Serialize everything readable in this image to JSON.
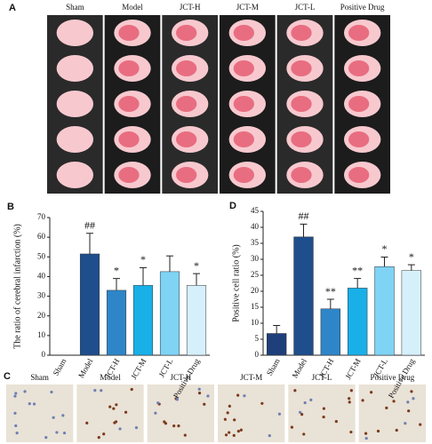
{
  "panel_a": {
    "label": "A",
    "groups": [
      "Sham",
      "Model",
      "JCT-H",
      "JCT-M",
      "JCT-L",
      "Positive Drug"
    ]
  },
  "chart_data": [
    {
      "type": "bar",
      "panel_label": "B",
      "y_label": "The ratio of cerebral infarction (%)",
      "categories": [
        "Sham",
        "Model",
        "JCT-H",
        "JCT-M",
        "JCT-L",
        "Positive Drug"
      ],
      "values": [
        0,
        51.5,
        33,
        35.5,
        42.5,
        35.5
      ],
      "errors": [
        0,
        10.5,
        6,
        9,
        8,
        6
      ],
      "annotations": [
        null,
        "##",
        "*",
        "*",
        null,
        "*"
      ],
      "colors": [
        "#1f3f7a",
        "#1f4e8c",
        "#2e86c8",
        "#19b0e8",
        "#7fd3f5",
        "#d6f0fb"
      ],
      "ylim": [
        0,
        70
      ],
      "yticks": [
        0,
        10,
        20,
        30,
        40,
        50,
        60,
        70
      ]
    },
    {
      "type": "bar",
      "panel_label": "D",
      "y_label": "Positive cell ratio (%)",
      "categories": [
        "Sham",
        "Model",
        "JCT-H",
        "JCT-M",
        "JCT-L",
        "Positive Drug"
      ],
      "values": [
        6.8,
        37,
        14.5,
        21,
        27.7,
        26.5
      ],
      "errors": [
        2.5,
        4,
        3,
        3,
        3,
        1.8
      ],
      "annotations": [
        null,
        "##",
        "**",
        "**",
        "*",
        "*"
      ],
      "colors": [
        "#1f3f7a",
        "#1f4e8c",
        "#2e86c8",
        "#19b0e8",
        "#7fd3f5",
        "#d6f0fb"
      ],
      "ylim": [
        0,
        45
      ],
      "yticks": [
        0,
        5,
        10,
        15,
        20,
        25,
        30,
        35,
        40,
        45
      ]
    }
  ],
  "panel_c": {
    "label": "C",
    "groups": [
      "Sham",
      "Model",
      "JCT-H",
      "JCT-M",
      "JCT-L",
      "Positive Drug"
    ]
  }
}
